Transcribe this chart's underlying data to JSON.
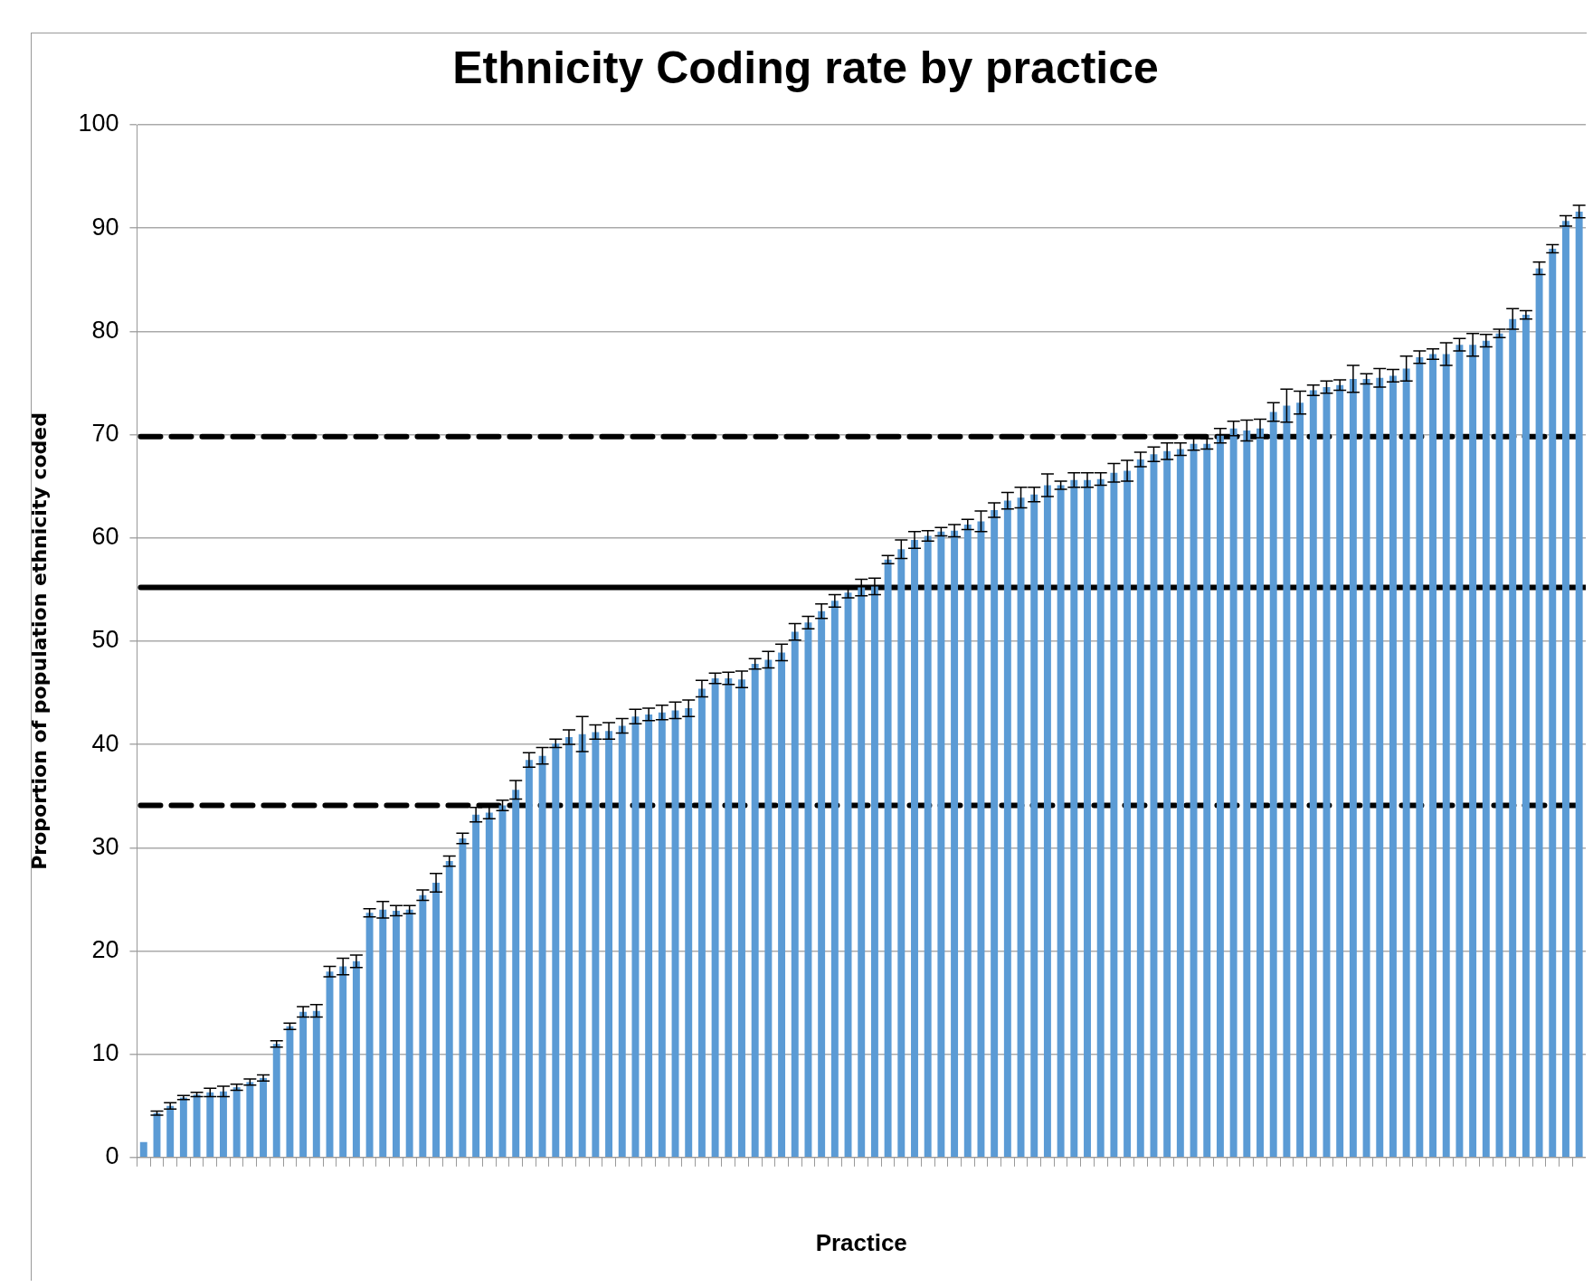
{
  "chart_data": {
    "type": "bar",
    "title": "Ethnicity Coding rate by practice",
    "xlabel": "Practice",
    "ylabel": "Proportion of population ethnicity coded",
    "categories": [
      null,
      null,
      null,
      null,
      null,
      null,
      null,
      null,
      null,
      null,
      null,
      null,
      null,
      null,
      null,
      null,
      null,
      null,
      null,
      null,
      null,
      null,
      null,
      null,
      null,
      null,
      null,
      null,
      null,
      null,
      null,
      null,
      null,
      null,
      null,
      null,
      null,
      null,
      null,
      null,
      null,
      null,
      null,
      null,
      null,
      null,
      null,
      null,
      null,
      null,
      null,
      null,
      null,
      null,
      null,
      null,
      null,
      null,
      null,
      null,
      null,
      null,
      null,
      null,
      null,
      null,
      null,
      null,
      null,
      null,
      null,
      null,
      null,
      null,
      null,
      null,
      null,
      null,
      null,
      null,
      null,
      null,
      null,
      null,
      null,
      null,
      null,
      null,
      null,
      null,
      null,
      null,
      null,
      null,
      null,
      null,
      null,
      null,
      null,
      null,
      null,
      null,
      null,
      null,
      null,
      null,
      null,
      null,
      null
    ],
    "color": "#5b9bd5",
    "values": [
      1.5,
      4.3,
      5.0,
      5.8,
      6.1,
      6.3,
      6.4,
      6.8,
      7.3,
      7.7,
      11.0,
      12.7,
      14.1,
      14.2,
      18.0,
      18.5,
      19.0,
      23.7,
      24.0,
      23.9,
      24.0,
      25.4,
      26.6,
      28.7,
      30.9,
      33.2,
      33.4,
      34.1,
      35.6,
      38.5,
      38.9,
      40.1,
      40.7,
      41.0,
      41.2,
      41.3,
      41.8,
      42.7,
      42.9,
      43.1,
      43.3,
      43.5,
      45.4,
      46.4,
      46.4,
      46.3,
      47.8,
      48.2,
      48.9,
      50.9,
      51.8,
      52.9,
      53.9,
      54.7,
      55.2,
      55.3,
      57.9,
      58.9,
      59.8,
      60.2,
      60.6,
      60.7,
      61.3,
      61.6,
      62.7,
      63.6,
      63.9,
      64.2,
      65.1,
      65.1,
      65.6,
      65.6,
      65.7,
      66.3,
      66.5,
      67.6,
      68.1,
      68.4,
      68.6,
      69.1,
      69.1,
      69.9,
      70.6,
      70.4,
      70.6,
      72.2,
      72.8,
      73.1,
      74.3,
      74.6,
      74.8,
      75.4,
      75.4,
      75.5,
      75.7,
      76.4,
      77.5,
      77.8,
      77.8,
      78.7,
      78.7,
      79.1,
      79.8,
      81.2,
      81.6,
      86.1,
      88.0,
      90.7,
      91.6
    ],
    "errors": [
      null,
      0.2,
      0.3,
      0.2,
      0.2,
      0.4,
      0.5,
      0.3,
      0.3,
      0.3,
      0.3,
      0.3,
      0.5,
      0.6,
      0.5,
      0.8,
      0.6,
      0.4,
      0.8,
      0.5,
      0.4,
      0.5,
      0.9,
      0.5,
      0.5,
      0.7,
      0.6,
      0.5,
      0.9,
      0.7,
      0.8,
      0.4,
      0.7,
      1.7,
      0.7,
      0.8,
      0.7,
      0.7,
      0.6,
      0.7,
      0.8,
      0.8,
      0.8,
      0.5,
      0.6,
      0.8,
      0.5,
      0.8,
      0.8,
      0.8,
      0.6,
      0.7,
      0.6,
      0.5,
      0.8,
      0.8,
      0.4,
      0.9,
      0.8,
      0.5,
      0.4,
      0.6,
      0.5,
      1.0,
      0.7,
      0.8,
      1.0,
      0.7,
      1.1,
      0.4,
      0.7,
      0.7,
      0.6,
      0.9,
      1.0,
      0.7,
      0.7,
      0.8,
      0.6,
      0.6,
      0.5,
      0.7,
      0.7,
      1.0,
      0.9,
      0.9,
      1.6,
      1.1,
      0.5,
      0.6,
      0.5,
      1.3,
      0.5,
      0.9,
      0.6,
      1.2,
      0.6,
      0.5,
      1.1,
      0.6,
      1.1,
      0.6,
      0.4,
      1.0,
      0.4,
      0.6,
      0.4,
      0.5,
      0.6
    ],
    "ylim": [
      0,
      100
    ],
    "yticks": [
      0,
      10,
      20,
      30,
      40,
      50,
      60,
      70,
      80,
      90,
      100
    ],
    "grid": "y",
    "legend": false,
    "ref_lines": [
      {
        "axis": "y",
        "value": 69.8,
        "line_style": "dashed",
        "color": "#000000"
      },
      {
        "axis": "y",
        "value": 55.2,
        "line_style": "solid",
        "color": "#000000"
      },
      {
        "axis": "y",
        "value": 34.1,
        "line_style": "dashed",
        "color": "#000000"
      }
    ]
  }
}
